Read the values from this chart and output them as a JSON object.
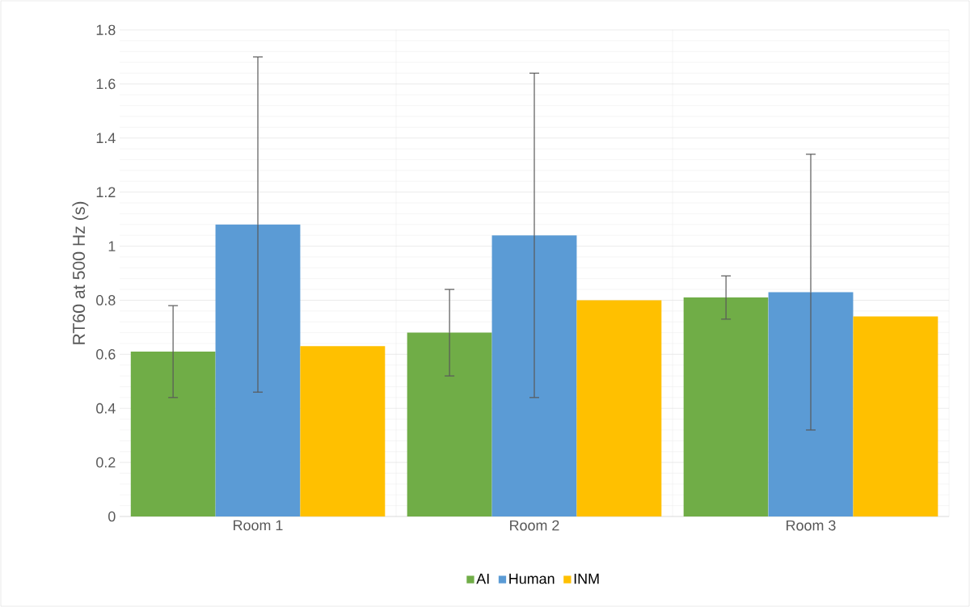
{
  "chart_data": {
    "type": "bar",
    "ylabel": "RT60 at 500 Hz (s)",
    "categories": [
      "Room 1",
      "Room 2",
      "Room 3"
    ],
    "series": [
      {
        "name": "AI",
        "color": "#70ad47",
        "values": [
          0.61,
          0.68,
          0.81
        ],
        "errors": [
          0.17,
          0.16,
          0.08
        ]
      },
      {
        "name": "Human",
        "color": "#5b9bd5",
        "values": [
          1.08,
          1.04,
          0.83
        ],
        "errors": [
          0.62,
          0.6,
          0.51
        ]
      },
      {
        "name": "INM",
        "color": "#ffc000",
        "values": [
          0.63,
          0.8,
          0.74
        ]
      }
    ],
    "ylim": [
      0,
      1.8
    ],
    "yticks": [
      0,
      0.2,
      0.4,
      0.6,
      0.8,
      1,
      1.2,
      1.4,
      1.6,
      1.8
    ],
    "grid": true,
    "legend": "bottom"
  }
}
